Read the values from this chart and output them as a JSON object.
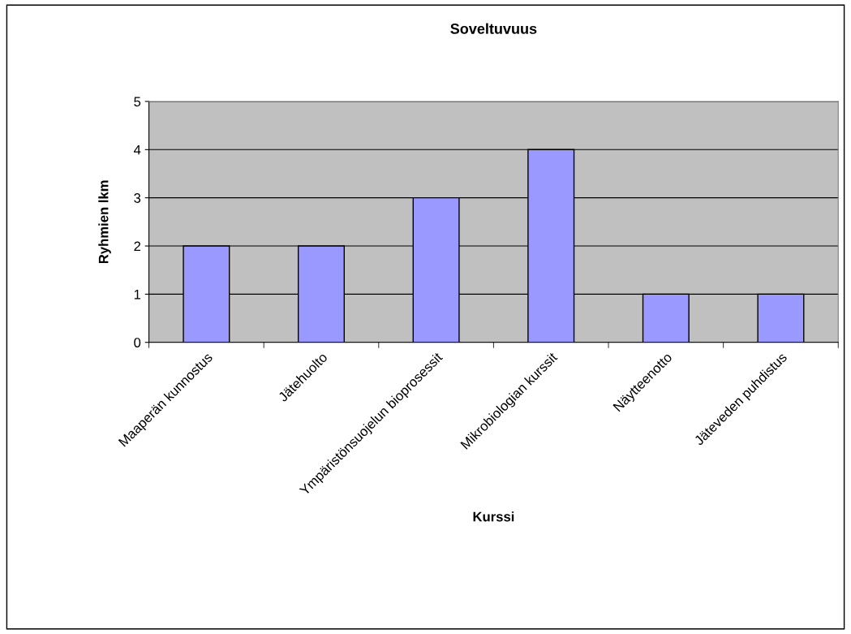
{
  "chart_data": {
    "type": "bar",
    "title": "Soveltuvuus",
    "xlabel": "Kurssi",
    "ylabel": "Ryhmien lkm",
    "categories": [
      "Maaperän kunnostus",
      "Jätehuolto",
      "Ympäristönsuojelun bioprosessit",
      "Mikrobiologian kurssit",
      "Näytteenotto",
      "Jäteveden puhdistus"
    ],
    "values": [
      2,
      2,
      3,
      4,
      1,
      1
    ],
    "color": "#9999ff",
    "ylim": [
      0,
      5
    ],
    "yticks": [
      0,
      1,
      2,
      3,
      4,
      5
    ],
    "grid": "y",
    "legend": false
  }
}
